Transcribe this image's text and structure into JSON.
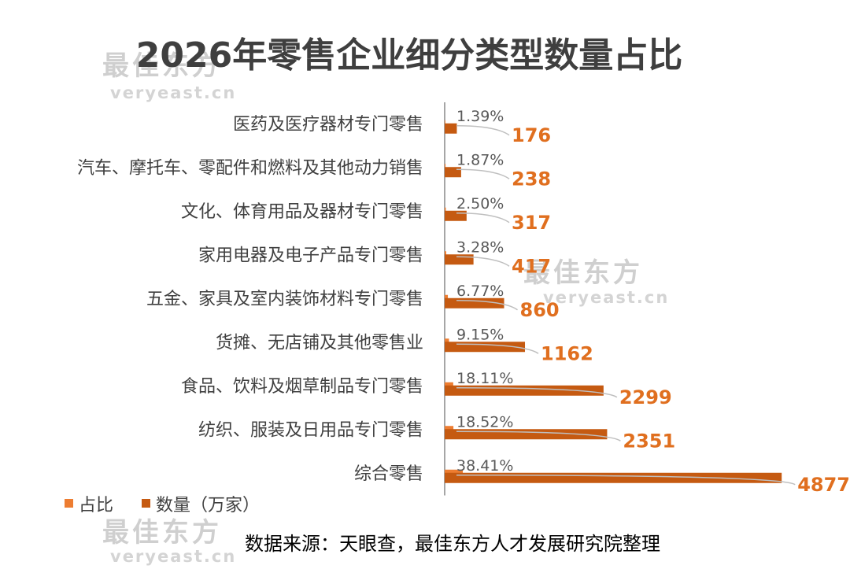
{
  "colors": {
    "bar_share": "#ED7D31",
    "bar_count": "#C55A11",
    "value_label": "#E06F1F",
    "axis": "#a6a6a6",
    "leader": "#bfbfbf"
  },
  "watermark": {
    "brand": "最佳东方",
    "site": "veryeast.cn"
  },
  "source_note": "数据来源：天眼查，最佳东方人才发展研究院整理",
  "chart_data": {
    "type": "bar",
    "orientation": "horizontal",
    "title": "2026年零售企业细分类型数量占比",
    "categories": [
      "医药及医疗器材专门零售",
      "汽车、摩托车、零配件和燃料及其他动力销售",
      "文化、体育用品及器材专门零售",
      "家用电器及电子产品专门零售",
      "五金、家具及室内装饰材料专门零售",
      "货摊、无店铺及其他零售业",
      "食品、饮料及烟草制品专门零售",
      "纺织、服装及日用品专门零售",
      "综合零售"
    ],
    "series": [
      {
        "name": "占比",
        "values": [
          1.39,
          1.87,
          2.5,
          3.28,
          6.77,
          9.15,
          18.11,
          18.52,
          38.41
        ],
        "labels": [
          "1.39%",
          "1.87%",
          "2.50%",
          "3.28%",
          "6.77%",
          "9.15%",
          "18.11%",
          "18.52%",
          "38.41%"
        ]
      },
      {
        "name": "数量（万家）",
        "values": [
          176,
          238,
          317,
          417,
          860,
          1162,
          2299,
          2351,
          4877
        ],
        "labels": [
          "176",
          "238",
          "317",
          "417",
          "860",
          "1162",
          "2299",
          "2351",
          "4877"
        ]
      }
    ],
    "legend": "bottom-left",
    "grid": false
  }
}
